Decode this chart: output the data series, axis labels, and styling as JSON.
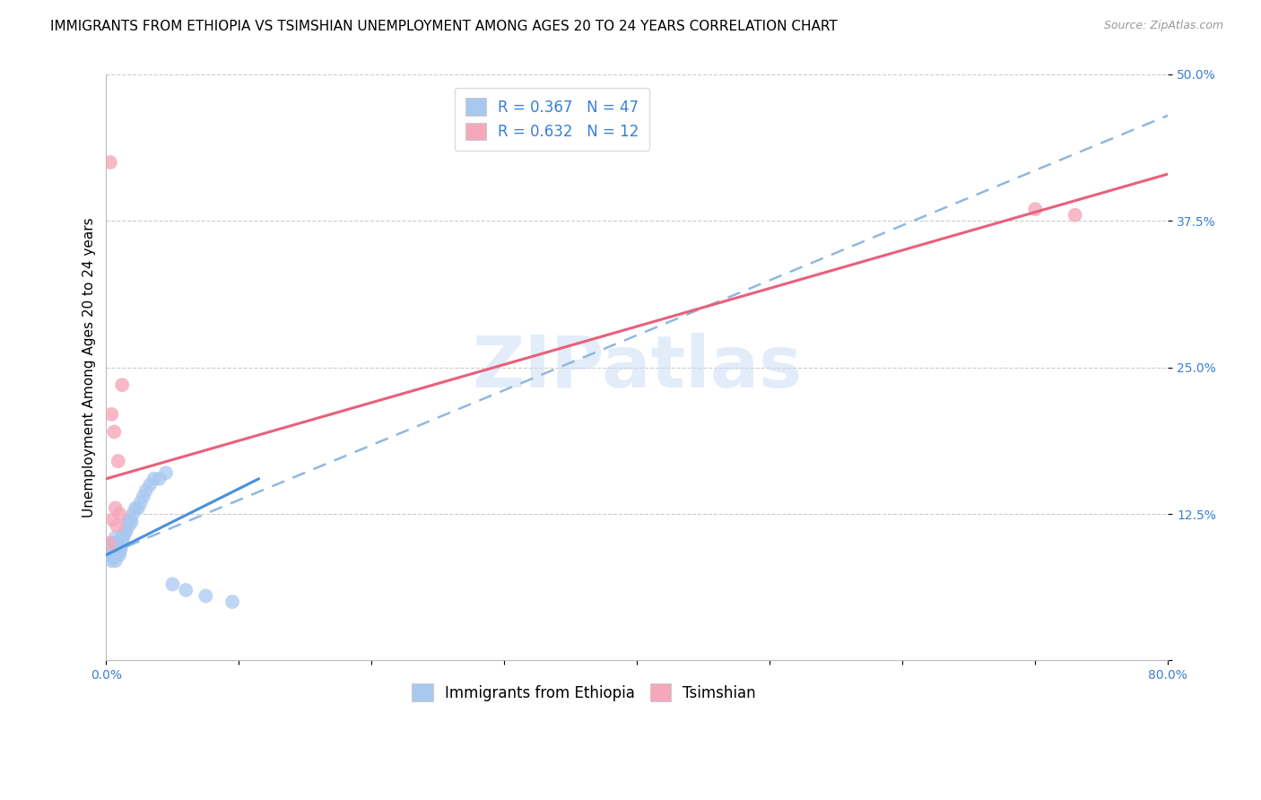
{
  "title": "IMMIGRANTS FROM ETHIOPIA VS TSIMSHIAN UNEMPLOYMENT AMONG AGES 20 TO 24 YEARS CORRELATION CHART",
  "source": "Source: ZipAtlas.com",
  "ylabel": "Unemployment Among Ages 20 to 24 years",
  "xlim": [
    0.0,
    0.8
  ],
  "ylim": [
    0.0,
    0.5
  ],
  "xticks": [
    0.0,
    0.1,
    0.2,
    0.3,
    0.4,
    0.5,
    0.6,
    0.7,
    0.8
  ],
  "xticklabels": [
    "0.0%",
    "",
    "",
    "",
    "",
    "",
    "",
    "",
    "80.0%"
  ],
  "yticks": [
    0.0,
    0.125,
    0.25,
    0.375,
    0.5
  ],
  "yticklabels": [
    "",
    "12.5%",
    "25.0%",
    "37.5%",
    "50.0%"
  ],
  "blue_color": "#a8c8f0",
  "pink_color": "#f5a8ba",
  "blue_line_color": "#4a90d9",
  "pink_line_color": "#e8607a",
  "dashed_line_color": "#90b8e0",
  "legend_label1": "Immigrants from Ethiopia",
  "legend_label2": "Tsimshian",
  "watermark": "ZIPatlas",
  "title_fontsize": 11,
  "axis_label_fontsize": 11,
  "tick_fontsize": 10,
  "blue_scatter_x": [
    0.002,
    0.003,
    0.003,
    0.004,
    0.004,
    0.005,
    0.005,
    0.005,
    0.006,
    0.006,
    0.006,
    0.007,
    0.007,
    0.007,
    0.008,
    0.008,
    0.008,
    0.009,
    0.009,
    0.01,
    0.01,
    0.01,
    0.011,
    0.011,
    0.012,
    0.012,
    0.013,
    0.014,
    0.015,
    0.016,
    0.017,
    0.018,
    0.019,
    0.02,
    0.022,
    0.024,
    0.026,
    0.028,
    0.03,
    0.033,
    0.036,
    0.04,
    0.045,
    0.05,
    0.06,
    0.075,
    0.095
  ],
  "blue_scatter_y": [
    0.095,
    0.09,
    0.1,
    0.085,
    0.095,
    0.088,
    0.095,
    0.1,
    0.09,
    0.095,
    0.1,
    0.085,
    0.095,
    0.105,
    0.09,
    0.095,
    0.1,
    0.092,
    0.098,
    0.09,
    0.095,
    0.1,
    0.1,
    0.095,
    0.1,
    0.105,
    0.105,
    0.11,
    0.11,
    0.118,
    0.115,
    0.12,
    0.118,
    0.125,
    0.13,
    0.13,
    0.135,
    0.14,
    0.145,
    0.15,
    0.155,
    0.155,
    0.16,
    0.065,
    0.06,
    0.055,
    0.05
  ],
  "pink_scatter_x": [
    0.002,
    0.003,
    0.004,
    0.005,
    0.006,
    0.007,
    0.008,
    0.009,
    0.01,
    0.012,
    0.7,
    0.73
  ],
  "pink_scatter_y": [
    0.1,
    0.425,
    0.21,
    0.12,
    0.195,
    0.13,
    0.115,
    0.17,
    0.125,
    0.235,
    0.385,
    0.38
  ],
  "blue_line_x": [
    0.0,
    0.115
  ],
  "blue_line_y": [
    0.09,
    0.155
  ],
  "dashed_line_x": [
    0.0,
    0.8
  ],
  "dashed_line_y": [
    0.09,
    0.465
  ],
  "pink_line_x": [
    0.0,
    0.8
  ],
  "pink_line_y": [
    0.155,
    0.415
  ]
}
